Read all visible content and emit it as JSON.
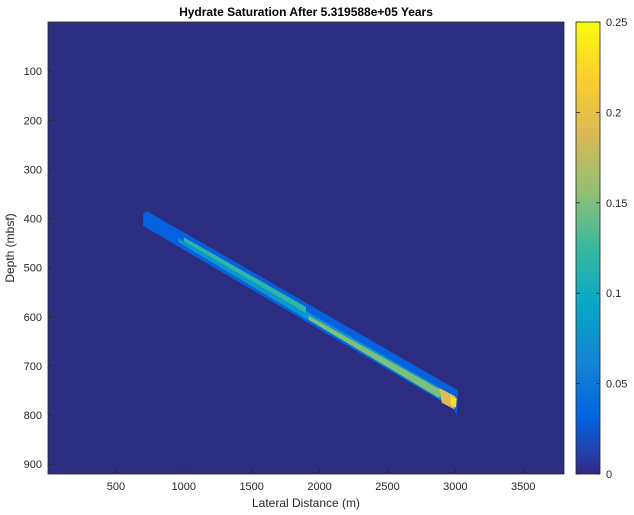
{
  "chart_data": {
    "type": "heatmap",
    "title": "Hydrate Saturation After 5.319588e+05 Years",
    "xlabel": "Lateral Distance (m)",
    "ylabel": "Depth (mbsf)",
    "xlim": [
      0,
      3800
    ],
    "ylim": [
      920,
      0
    ],
    "y_reversed": true,
    "x_ticks": [
      "500",
      "1000",
      "1500",
      "2000",
      "2500",
      "3000",
      "3500"
    ],
    "x_tick_values": [
      500,
      1000,
      1500,
      2000,
      2500,
      3000,
      3500
    ],
    "y_ticks": [
      "100",
      "200",
      "300",
      "400",
      "500",
      "600",
      "700",
      "800",
      "900"
    ],
    "y_tick_values": [
      100,
      200,
      300,
      400,
      500,
      600,
      700,
      800,
      900
    ],
    "colorbar": {
      "range": [
        0,
        0.25
      ],
      "ticks": [
        "0",
        "0.05",
        "0.1",
        "0.15",
        "0.2",
        "0.25"
      ],
      "tick_values": [
        0,
        0.05,
        0.1,
        0.15,
        0.2,
        0.25
      ],
      "colormap": "parula"
    },
    "background_value": 0,
    "features": [
      {
        "name": "outer-band",
        "saturation": 0.03,
        "outline": [
          [
            700,
            390
          ],
          [
            730,
            385
          ],
          [
            3020,
            750
          ],
          [
            3010,
            800
          ],
          [
            2980,
            785
          ],
          [
            700,
            415
          ]
        ]
      },
      {
        "name": "mid-band",
        "saturation": 0.08,
        "outline": [
          [
            960,
            440
          ],
          [
            2950,
            755
          ],
          [
            3000,
            770
          ],
          [
            2980,
            780
          ],
          [
            2900,
            770
          ],
          [
            960,
            448
          ]
        ]
      },
      {
        "name": "inner-band-upper",
        "saturation": 0.12,
        "outline": [
          [
            1000,
            438
          ],
          [
            1900,
            580
          ],
          [
            1900,
            592
          ],
          [
            1000,
            446
          ]
        ]
      },
      {
        "name": "inner-band-lower",
        "saturation": 0.15,
        "outline": [
          [
            1920,
            598
          ],
          [
            2900,
            750
          ],
          [
            2880,
            765
          ],
          [
            1920,
            606
          ]
        ]
      },
      {
        "name": "high-spot",
        "saturation": 0.19,
        "outline": [
          [
            2880,
            745
          ],
          [
            3000,
            762
          ],
          [
            2990,
            788
          ],
          [
            2900,
            775
          ]
        ]
      },
      {
        "name": "peak-spot",
        "saturation": 0.23,
        "outline": [
          [
            2960,
            762
          ],
          [
            3010,
            766
          ],
          [
            3005,
            785
          ],
          [
            2970,
            780
          ]
        ]
      }
    ]
  },
  "colors": {
    "background": "#2c2c80",
    "axis": "#262626",
    "colormap_stops": [
      "#352a87",
      "#0363e1",
      "#1485d4",
      "#06a7c6",
      "#38b99e",
      "#92bf73",
      "#d9ba56",
      "#fcce2e",
      "#f9fb0e"
    ]
  }
}
